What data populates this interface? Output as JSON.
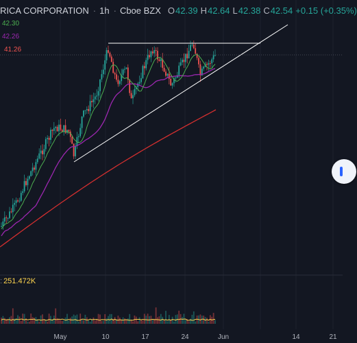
{
  "header": {
    "title": "RICA CORPORATION",
    "interval": "1h",
    "exchange": "Cboe BZX",
    "open_label": "O",
    "open": "42.39",
    "high_label": "H",
    "high": "42.64",
    "low_label": "L",
    "low": "42.38",
    "close_label": "C",
    "close": "42.54",
    "change": "+0.15 (+0.35%)"
  },
  "ma_labels": {
    "green": "42.30",
    "purple": "42.26",
    "red": "41.26"
  },
  "volume": {
    "label_value": "251.472K"
  },
  "colors": {
    "background": "#131722",
    "up": "#26a69a",
    "down": "#ef5350",
    "ma_green": "#4caf50",
    "ma_purple": "#9c27b0",
    "ma_red": "#d32f2f",
    "volume_line": "#ffd54f",
    "trendline": "#ffffff"
  },
  "chart_data": {
    "type": "candlestick",
    "x_tick_labels": [
      "May",
      "10",
      "17",
      "24",
      "Jun",
      "14",
      "21"
    ],
    "price_labels": [
      "42.30",
      "42.26",
      "41.26"
    ],
    "volume_value": "251.472K"
  },
  "toolbar": {
    "scroll_button_icon": "scroll-to-realtime-icon"
  }
}
